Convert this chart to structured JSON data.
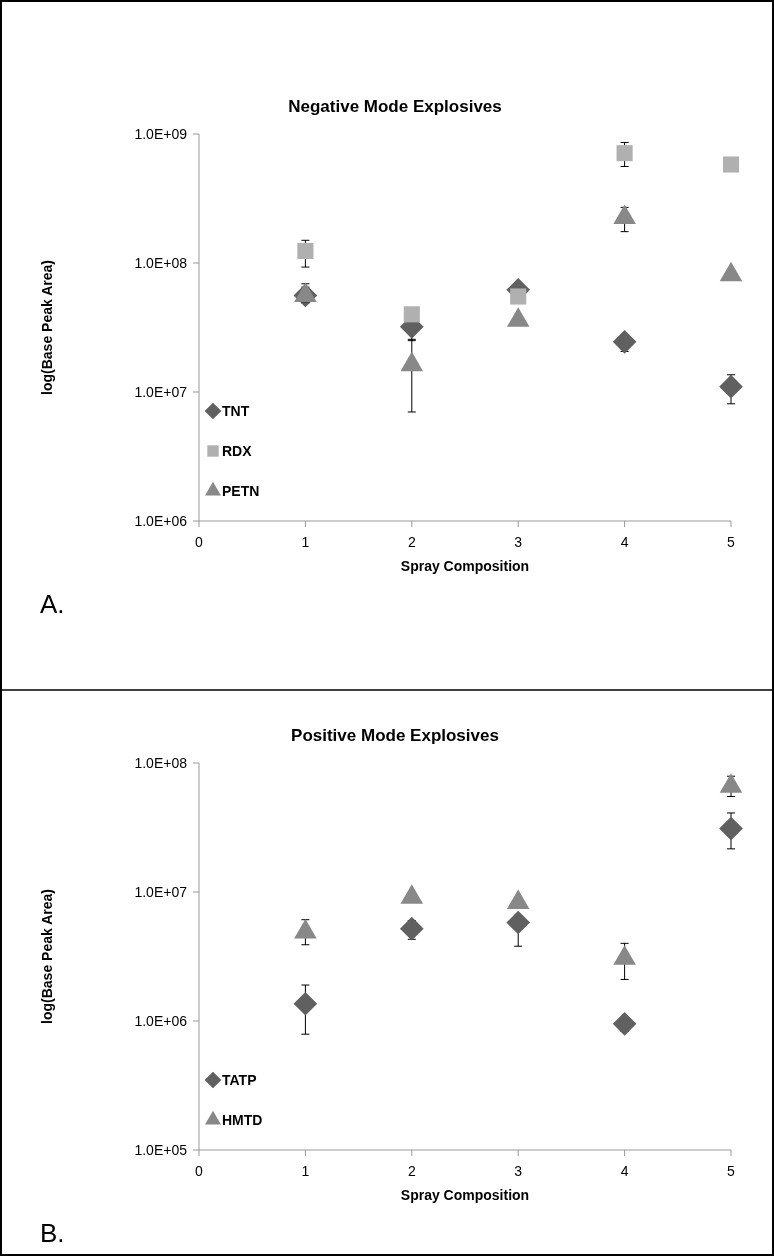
{
  "chart_data": [
    {
      "type": "scatter",
      "title": "Negative Mode Explosives",
      "xlabel": "Spray Composition",
      "ylabel": "log(Base Peak Area)",
      "annotations": [
        "A."
      ],
      "log": "y",
      "grid": false,
      "legend": "bottom left",
      "x": [
        1,
        2,
        3,
        4,
        5
      ],
      "xlim": [
        0,
        5
      ],
      "xticks": [
        0,
        1,
        2,
        3,
        4,
        5
      ],
      "ylim": [
        1000000,
        1000000000
      ],
      "yticks": [
        {
          "value": 1000000,
          "label": "1.0E+06"
        },
        {
          "value": 10000000,
          "label": "1.0E+07"
        },
        {
          "value": 100000000,
          "label": "1.0E+08"
        },
        {
          "value": 1000000000,
          "label": "1.0E+09"
        }
      ],
      "series": [
        {
          "name": "TNT",
          "color": "#606060",
          "marker": "diamond",
          "values": [
            56000000,
            32000000,
            62000000,
            24500000,
            11000000
          ],
          "errors": [
            [
              49000000,
              65000000
            ],
            [
              25000000,
              32000000
            ],
            null,
            [
              20600000,
              24500000
            ],
            [
              8100000,
              13600000
            ]
          ]
        },
        {
          "name": "RDX",
          "color": "#b0b0b0",
          "marker": "square",
          "values": [
            124000000,
            40000000,
            55000000,
            710000000,
            580000000
          ],
          "errors": [
            [
              93000000,
              150000000
            ],
            null,
            null,
            [
              560000000,
              860000000
            ],
            null
          ]
        },
        {
          "name": "PETN",
          "color": "#888888",
          "marker": "triangle",
          "values": [
            56000000,
            16300000,
            36000000,
            225000000,
            81000000
          ],
          "errors": [
            [
              50000000,
              69000000
            ],
            [
              7000000,
              25600000
            ],
            null,
            [
              175000000,
              270000000
            ],
            null
          ]
        }
      ]
    },
    {
      "type": "scatter",
      "title": "Positive Mode Explosives",
      "xlabel": "Spray Composition",
      "ylabel": "log(Base Peak Area)",
      "annotations": [
        "B."
      ],
      "log": "y",
      "grid": false,
      "legend": "bottom left",
      "x": [
        1,
        2,
        3,
        4,
        5
      ],
      "xlim": [
        0,
        5
      ],
      "xticks": [
        0,
        1,
        2,
        3,
        4,
        5
      ],
      "ylim": [
        100000,
        100000000
      ],
      "yticks": [
        {
          "value": 100000,
          "label": "1.0E+05"
        },
        {
          "value": 1000000,
          "label": "1.0E+06"
        },
        {
          "value": 10000000,
          "label": "1.0E+07"
        },
        {
          "value": 100000000,
          "label": "1.0E+08"
        }
      ],
      "series": [
        {
          "name": "TATP",
          "color": "#606060",
          "marker": "diamond",
          "values": [
            1360000,
            5200000,
            5800000,
            950000,
            31000000
          ],
          "errors": [
            [
              790000,
              1900000
            ],
            [
              4300000,
              6000000
            ],
            [
              3800000,
              6500000
            ],
            [
              830000,
              1050000
            ],
            [
              21600000,
              41000000
            ]
          ]
        },
        {
          "name": "HMTD",
          "color": "#888888",
          "marker": "triangle",
          "values": [
            4900000,
            9100000,
            8300000,
            3060000,
            66000000
          ],
          "errors": [
            [
              3900000,
              6100000
            ],
            null,
            null,
            [
              2100000,
              4000000
            ],
            [
              55000000,
              79000000
            ]
          ]
        }
      ]
    }
  ]
}
